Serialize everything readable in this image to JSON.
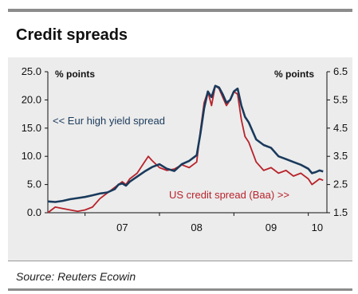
{
  "title": "Credit spreads",
  "source": "Source: Reuters Ecowin",
  "chart_data": {
    "type": "line",
    "title": "Credit spreads",
    "left_axis": {
      "unit_label": "% points",
      "ylim": [
        0,
        25
      ],
      "ticks": [
        "0.0",
        "5.0",
        "10.0",
        "15.0",
        "20.0",
        "25.0"
      ]
    },
    "right_axis": {
      "unit_label": "% points",
      "ylim": [
        1.5,
        6.5
      ],
      "ticks": [
        "1.5",
        "2.5",
        "3.5",
        "4.5",
        "5.5",
        "6.5"
      ]
    },
    "x_ticks": [
      "07",
      "08",
      "09",
      "10"
    ],
    "x_range": [
      2006.5,
      2010.25
    ],
    "series": [
      {
        "name": "<< Eur high yield spread",
        "axis": "left",
        "color": "#1a3a5c",
        "x": [
          2006.5,
          2006.6,
          2006.7,
          2006.8,
          2006.9,
          2007.0,
          2007.1,
          2007.2,
          2007.3,
          2007.4,
          2007.45,
          2007.5,
          2007.55,
          2007.6,
          2007.7,
          2007.8,
          2007.9,
          2008.0,
          2008.1,
          2008.2,
          2008.3,
          2008.4,
          2008.5,
          2008.55,
          2008.6,
          2008.65,
          2008.7,
          2008.75,
          2008.8,
          2008.85,
          2008.9,
          2008.95,
          2009.0,
          2009.05,
          2009.1,
          2009.15,
          2009.2,
          2009.3,
          2009.4,
          2009.5,
          2009.6,
          2009.7,
          2009.8,
          2009.9,
          2010.0,
          2010.05,
          2010.1,
          2010.15,
          2010.2
        ],
        "y": [
          2.0,
          1.9,
          2.1,
          2.4,
          2.6,
          2.8,
          3.1,
          3.4,
          3.6,
          4.2,
          5.0,
          5.2,
          4.8,
          5.5,
          6.4,
          7.3,
          8.1,
          8.6,
          7.8,
          7.4,
          8.6,
          9.2,
          10.2,
          14.0,
          18.5,
          21.5,
          20.5,
          22.5,
          22.2,
          21.0,
          19.5,
          20.0,
          21.5,
          22.0,
          19.0,
          17.0,
          16.0,
          13.0,
          12.0,
          11.5,
          10.0,
          9.5,
          9.0,
          8.5,
          7.8,
          7.0,
          7.2,
          7.5,
          7.3
        ]
      },
      {
        "name": "US credit spread (Baa) >>",
        "axis": "right",
        "color": "#b8232b",
        "x": [
          2006.5,
          2006.6,
          2006.7,
          2006.8,
          2006.9,
          2007.0,
          2007.1,
          2007.2,
          2007.3,
          2007.4,
          2007.5,
          2007.55,
          2007.6,
          2007.7,
          2007.8,
          2007.85,
          2007.9,
          2008.0,
          2008.1,
          2008.2,
          2008.3,
          2008.4,
          2008.5,
          2008.55,
          2008.6,
          2008.65,
          2008.7,
          2008.75,
          2008.8,
          2008.85,
          2008.9,
          2008.95,
          2009.0,
          2009.05,
          2009.1,
          2009.15,
          2009.2,
          2009.3,
          2009.4,
          2009.5,
          2009.6,
          2009.7,
          2009.8,
          2009.9,
          2010.0,
          2010.05,
          2010.1,
          2010.15,
          2010.2
        ],
        "y": [
          1.5,
          1.7,
          1.65,
          1.6,
          1.55,
          1.6,
          1.7,
          2.0,
          2.2,
          2.4,
          2.6,
          2.5,
          2.7,
          2.9,
          3.3,
          3.5,
          3.35,
          3.1,
          3.0,
          3.05,
          3.2,
          3.1,
          3.3,
          4.4,
          5.4,
          5.8,
          5.3,
          6.0,
          5.9,
          5.6,
          5.3,
          5.5,
          5.8,
          5.7,
          4.8,
          4.2,
          4.0,
          3.3,
          3.0,
          3.1,
          2.9,
          3.0,
          2.8,
          2.9,
          2.7,
          2.5,
          2.6,
          2.7,
          2.65
        ]
      }
    ],
    "annotations": [
      {
        "text": "<< Eur high yield spread",
        "color": "#1a3a5c"
      },
      {
        "text": "US credit spread (Baa) >>",
        "color": "#b8232b"
      }
    ]
  }
}
